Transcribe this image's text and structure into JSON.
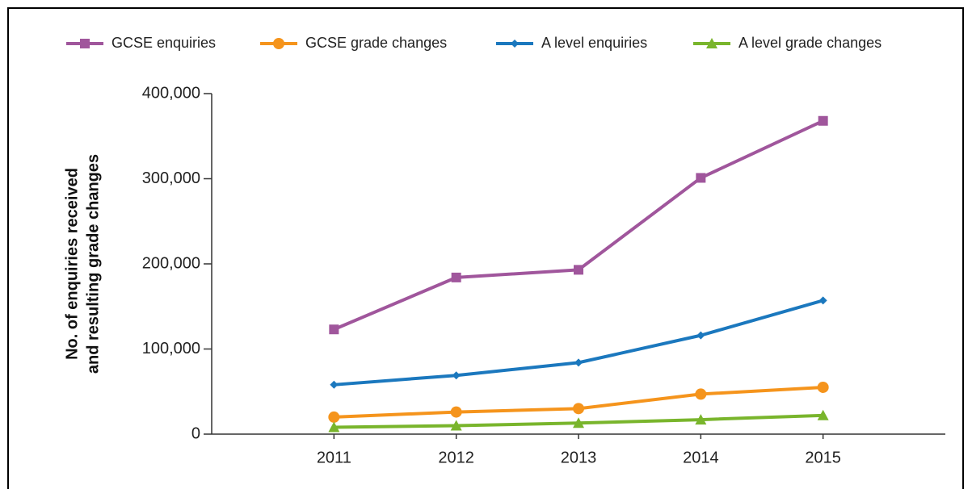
{
  "chart_data": {
    "type": "line",
    "ylabel": [
      "No. of enquiries received",
      "and resulting grade changes"
    ],
    "categories": [
      "2011",
      "2012",
      "2013",
      "2014",
      "2015"
    ],
    "series": [
      {
        "name": "GCSE enquiries",
        "color": "#a0569c",
        "marker": "square",
        "values": [
          123000,
          184000,
          193000,
          301000,
          368000
        ]
      },
      {
        "name": "GCSE grade changes",
        "color": "#f5941c",
        "marker": "circle",
        "values": [
          20000,
          26000,
          30000,
          47000,
          55000
        ]
      },
      {
        "name": "A level enquiries",
        "color": "#1b78be",
        "marker": "diamond",
        "values": [
          58000,
          69000,
          84000,
          116000,
          157000
        ]
      },
      {
        "name": "A level grade changes",
        "color": "#79b52c",
        "marker": "triangle",
        "values": [
          8000,
          10000,
          13000,
          17000,
          22000
        ]
      }
    ],
    "ylim": [
      0,
      400000
    ],
    "yticks": [
      0,
      {
        "value": 100000,
        "label": "100,000"
      },
      {
        "value": 200000,
        "label": "200,000"
      },
      {
        "value": 300000,
        "label": "300,000"
      },
      {
        "value": 400000,
        "label": "400,000"
      }
    ],
    "legend": "top"
  }
}
